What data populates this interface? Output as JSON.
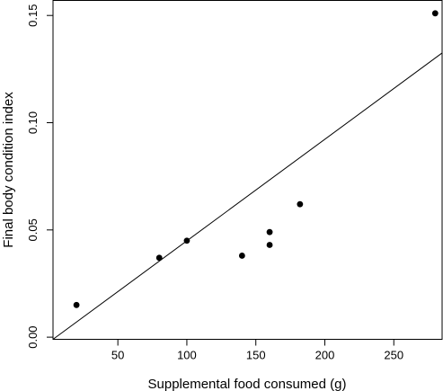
{
  "chart_data": {
    "type": "scatter",
    "title": "",
    "xlabel": "Supplemental food consumed (g)",
    "ylabel": "Final body condition index",
    "xlim": [
      3,
      285
    ],
    "ylim": [
      -0.001,
      0.157
    ],
    "xticks": [
      50,
      100,
      150,
      200,
      250
    ],
    "xtick_labels": [
      "50",
      "100",
      "150",
      "200",
      "250"
    ],
    "yticks": [
      0.0,
      0.05,
      0.1,
      0.15
    ],
    "ytick_labels": [
      "0.00",
      "0.05",
      "0.10",
      "0.15"
    ],
    "grid": false,
    "legend": "none",
    "points": [
      {
        "x": 20,
        "y": 0.015
      },
      {
        "x": 80,
        "y": 0.037
      },
      {
        "x": 100,
        "y": 0.045
      },
      {
        "x": 140,
        "y": 0.038
      },
      {
        "x": 160,
        "y": 0.049
      },
      {
        "x": 160,
        "y": 0.043
      },
      {
        "x": 182,
        "y": 0.062
      },
      {
        "x": 280,
        "y": 0.151
      }
    ],
    "fit_line": {
      "x": [
        3,
        285
      ],
      "y": [
        -0.001,
        0.1325
      ]
    },
    "colors": {
      "points": "#000000",
      "line": "#000000",
      "frame": "#000000"
    }
  }
}
